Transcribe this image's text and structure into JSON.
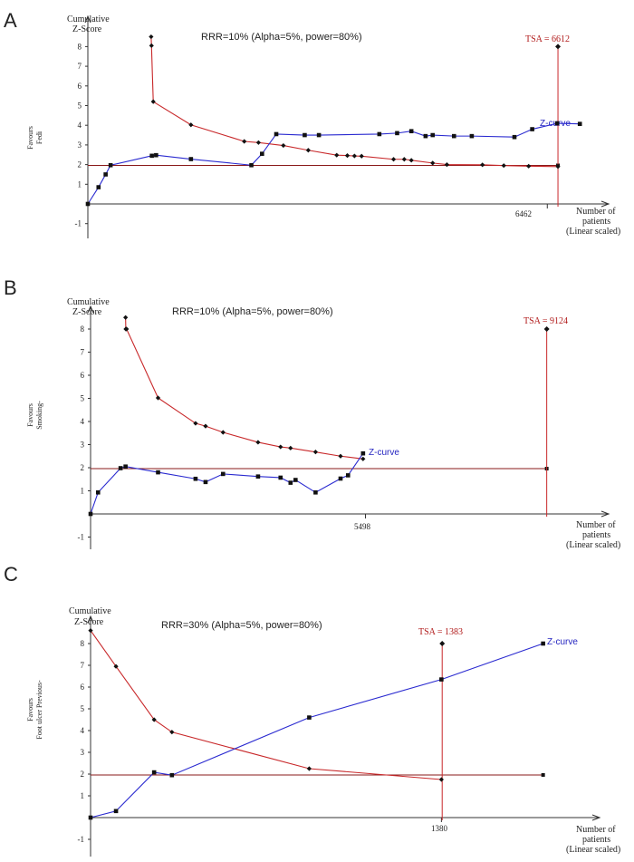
{
  "chart_data": [
    {
      "type": "line",
      "panel": "A",
      "subtitle": "RRR=10% (Alpha=5%, power=80%)",
      "ylabel": [
        "Cumulative",
        "Z-Score"
      ],
      "favours": [
        "Favours",
        "Fedi"
      ],
      "xlabel": [
        "Number of",
        "patients",
        "(Linear scaled)"
      ],
      "yticks": [
        -1,
        1,
        2,
        3,
        4,
        5,
        6,
        7,
        8
      ],
      "ylim": [
        -1.8,
        9.2
      ],
      "xlim": [
        0,
        7200
      ],
      "tsa_label": "TSA = 6612",
      "tsa_n": 6612,
      "tsa_top": 8.0,
      "x_end_label": "6462",
      "x_end": 6462,
      "zcurve_label": "Z-curve",
      "zcurve": {
        "x": [
          0,
          150,
          250,
          320,
          900,
          960,
          1450,
          2300,
          2450,
          2650,
          3050,
          3250,
          4100,
          4350,
          4550,
          4750,
          4850,
          5150,
          5400,
          6000,
          6250,
          6600,
          6920
        ],
        "y": [
          0,
          0.85,
          1.5,
          1.97,
          2.45,
          2.48,
          2.28,
          1.97,
          2.55,
          3.55,
          3.5,
          3.5,
          3.55,
          3.6,
          3.7,
          3.45,
          3.5,
          3.45,
          3.45,
          3.4,
          3.8,
          4.1,
          4.07
        ]
      },
      "boundary": {
        "x": [
          890,
          895,
          920,
          1450,
          2200,
          2400,
          2750,
          3100,
          3500,
          3650,
          3750,
          3850,
          4300,
          4450,
          4550,
          4850,
          5050,
          5550,
          5850,
          6200,
          6612
        ],
        "y": [
          8.5,
          8.05,
          5.2,
          4.02,
          3.18,
          3.12,
          2.97,
          2.73,
          2.48,
          2.46,
          2.44,
          2.43,
          2.27,
          2.27,
          2.22,
          2.08,
          2.0,
          1.99,
          1.95,
          1.92,
          1.9
        ]
      },
      "conventional": {
        "x": [
          0,
          6612
        ],
        "y": [
          1.96,
          1.96
        ]
      }
    },
    {
      "type": "line",
      "panel": "B",
      "subtitle": "RRR=10% (Alpha=5%, power=80%)",
      "ylabel": [
        "Cumulative",
        "Z-Score"
      ],
      "favours": [
        "Favours",
        "Smoking-"
      ],
      "xlabel": [
        "Number of",
        "patients",
        "(Linear scaled)"
      ],
      "yticks": [
        -1,
        1,
        2,
        3,
        4,
        5,
        6,
        7,
        8
      ],
      "ylim": [
        -1.8,
        9.3
      ],
      "xlim": [
        0,
        10300
      ],
      "tsa_label": "TSA = 9124",
      "tsa_n": 9124,
      "tsa_top": 8.0,
      "x_end_label": "5498",
      "x_end": 5498,
      "zcurve_label": "Z-curve",
      "zcurve": {
        "x": [
          0,
          150,
          600,
          700,
          1350,
          2100,
          2300,
          2650,
          3350,
          3800,
          4000,
          4100,
          4500,
          5000,
          5150,
          5450
        ],
        "y": [
          0,
          0.93,
          1.98,
          2.05,
          1.8,
          1.52,
          1.38,
          1.73,
          1.62,
          1.57,
          1.35,
          1.47,
          0.93,
          1.53,
          1.67,
          2.62
        ]
      },
      "boundary": {
        "x": [
          700,
          705,
          720,
          1350,
          2100,
          2300,
          2650,
          3350,
          3800,
          4000,
          4500,
          5000,
          5450
        ],
        "y": [
          8.5,
          8.0,
          8.0,
          5.02,
          3.92,
          3.8,
          3.53,
          3.1,
          2.9,
          2.85,
          2.68,
          2.5,
          2.38
        ]
      },
      "conventional": {
        "x": [
          0,
          9124
        ],
        "y": [
          1.96,
          1.96
        ]
      }
    },
    {
      "type": "line",
      "panel": "C",
      "subtitle": "RRR=30% (Alpha=5%, power=80%)",
      "ylabel": [
        "Cumulative",
        "Z-Score"
      ],
      "favours": [
        "Favours",
        "Foot ulcer Previous-"
      ],
      "xlabel": [
        "Number of",
        "patients",
        "(Linear scaled)"
      ],
      "yticks": [
        -1,
        1,
        2,
        3,
        4,
        5,
        6,
        7,
        8
      ],
      "ylim": [
        -1.8,
        9.3
      ],
      "xlim": [
        0,
        2030
      ],
      "tsa_label": "TSA = 1383",
      "tsa_n": 1383,
      "tsa_top": 8.0,
      "x_end_label": "1380",
      "x_end": 1380,
      "zcurve_label": "Z-curve",
      "zcurve": {
        "x": [
          0,
          100,
          250,
          320,
          860,
          1380,
          1780
        ],
        "y": [
          0,
          0.3,
          2.08,
          1.95,
          4.6,
          6.35,
          8.0
        ]
      },
      "boundary": {
        "x": [
          0,
          100,
          250,
          320,
          860,
          1380
        ],
        "y": [
          8.6,
          6.95,
          4.5,
          3.93,
          2.25,
          1.75
        ]
      },
      "conventional": {
        "x": [
          0,
          1780
        ],
        "y": [
          1.96,
          1.96
        ]
      }
    }
  ]
}
